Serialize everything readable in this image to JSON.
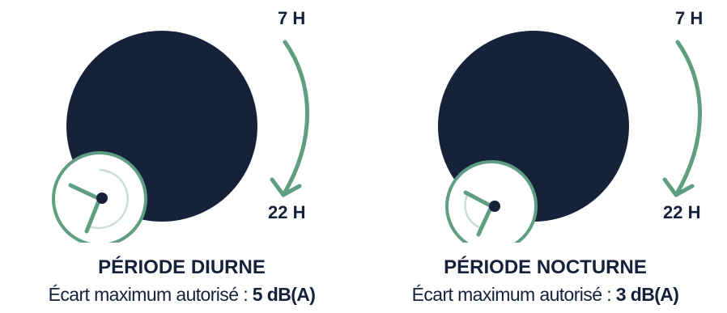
{
  "colors": {
    "navy": "#16213a",
    "green": "#5f9e83",
    "light_green": "#c9dfd4"
  },
  "icons": [
    "moon-disc",
    "clock",
    "clockwise-arrow"
  ],
  "panels": [
    {
      "top_hour": "7 H",
      "bottom_hour": "22 H",
      "title": "PÉRIODE DIURNE",
      "subtitle_prefix": "Écart maximum autorisé : ",
      "subtitle_value": "5 dB(A)"
    },
    {
      "top_hour": "7 H",
      "bottom_hour": "22 H",
      "title": "PÉRIODE NOCTURNE",
      "subtitle_prefix": "Écart maximum autorisé : ",
      "subtitle_value": "3 dB(A)"
    }
  ]
}
